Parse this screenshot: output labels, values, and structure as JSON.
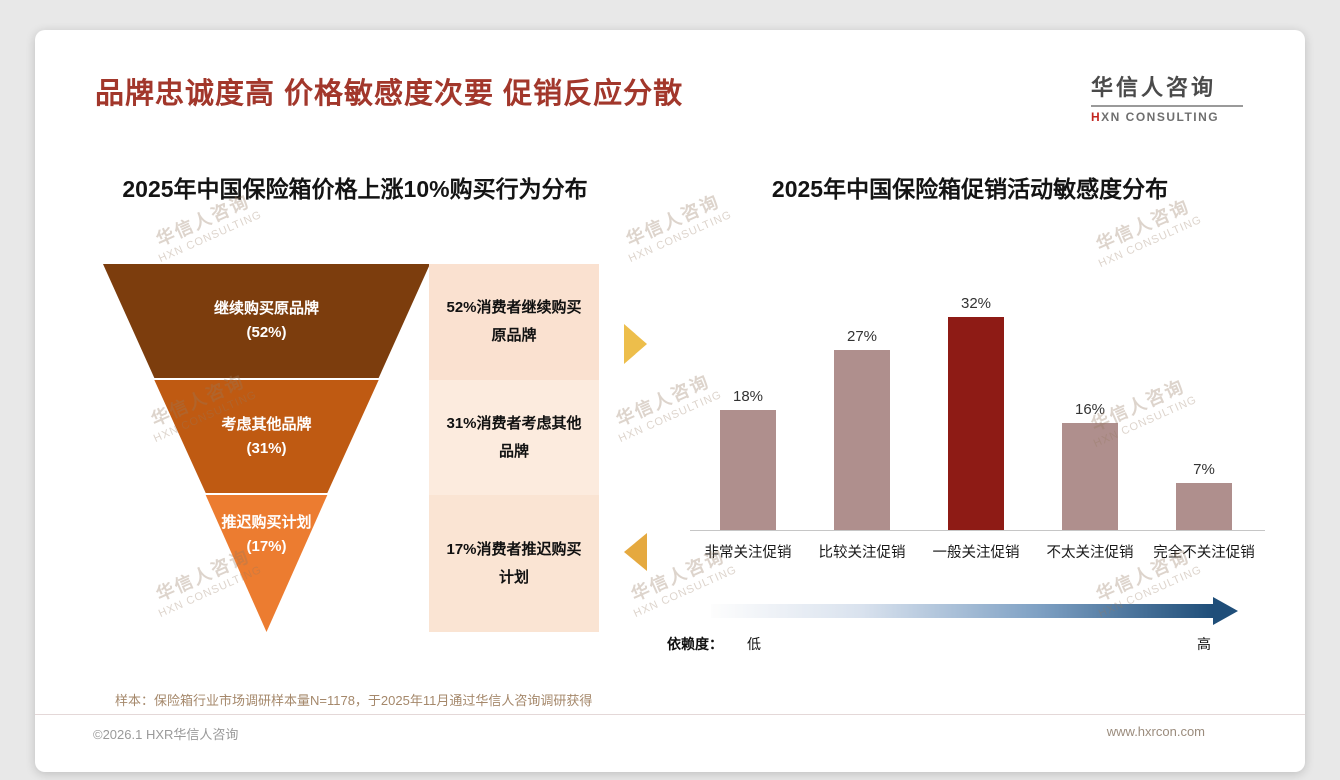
{
  "page": {
    "title": "品牌忠诚度高 价格敏感度次要 促销反应分散",
    "logo": {
      "cn": "华信人咨询",
      "en_red": "H",
      "en_rest": "XN CONSULTING"
    },
    "footnote": "样本：保险箱行业市场调研样本量N=1178，于2025年11月通过华信人咨询调研获得",
    "footer": {
      "copyright": "©2026.1 HXR华信人咨询",
      "website": "www.hxrcon.com"
    },
    "watermark": {
      "cn": "华信人咨询",
      "en": "HXN CONSULTING"
    }
  },
  "chart_data": [
    {
      "type": "funnel",
      "title": "2025年中国保险箱价格上涨10%购买行为分布",
      "stages": [
        {
          "label": "继续购买原品牌",
          "pct": "(52%)",
          "value": 52,
          "desc": "52%消费者继续购买原品牌",
          "color": "#7C3D0D",
          "desc_bg": "#FAE1D0"
        },
        {
          "label": "考虑其他品牌",
          "pct": "(31%)",
          "value": 31,
          "desc": "31%消费者考虑其他品牌",
          "color": "#BF5A12",
          "desc_bg": "#FCEBDE"
        },
        {
          "label": "推迟购买计划",
          "pct": "(17%)",
          "value": 17,
          "desc": "17%消费者推迟购买计划",
          "color": "#EC7C30",
          "desc_bg": "#FAE4D3"
        }
      ]
    },
    {
      "type": "bar",
      "title": "2025年中国保险箱促销活动敏感度分布",
      "categories": [
        "非常关注促销",
        "比较关注促销",
        "一般关注促销",
        "不太关注促销",
        "完全不关注促销"
      ],
      "values": [
        18,
        27,
        32,
        16,
        7
      ],
      "value_labels": [
        "18%",
        "27%",
        "32%",
        "16%",
        "7%"
      ],
      "ylim": [
        0,
        35
      ],
      "grid": false,
      "legend_position": "none",
      "bar_color": "#AF8F8D",
      "highlight_index": 2,
      "highlight_color": "#8E1B15",
      "dependency_axis": {
        "label": "依赖度：",
        "low": "低",
        "high": "高",
        "gradient_from": "#FFFFFF",
        "gradient_to": "#1F4E79"
      }
    }
  ]
}
